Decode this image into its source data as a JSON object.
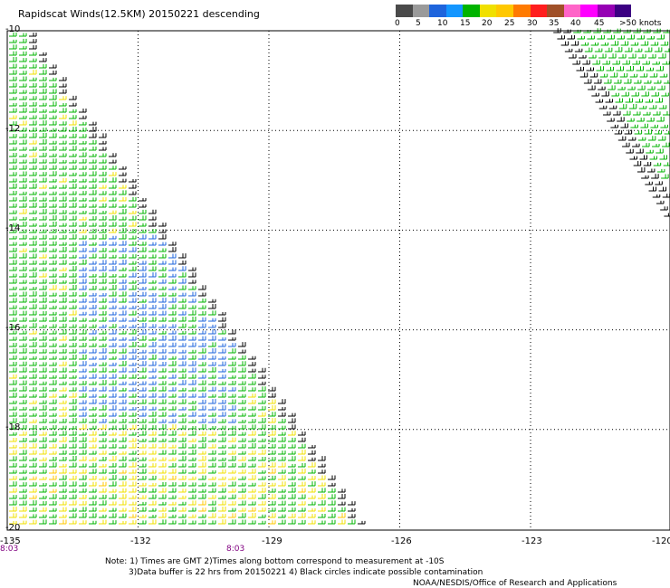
{
  "title": "Rapidscat Winds(12.5KM) 20150221 descending",
  "scale": {
    "colors": [
      "#4a4a4a",
      "#9a9a9a",
      "#1e64dc",
      "#1496ff",
      "#00b400",
      "#f0e000",
      "#ffc800",
      "#ff7a00",
      "#ff1e1e",
      "#a05028",
      "#ff64c8",
      "#ff00ff",
      "#9600b4",
      "#3c0082"
    ],
    "labels": [
      "0",
      "5",
      "10",
      "15",
      "20",
      "25",
      "30",
      "35",
      "40",
      "45",
      ">50 knots"
    ]
  },
  "lat_labels": [
    "-10",
    "-12",
    "-14",
    "-16",
    "-18",
    "-20"
  ],
  "lon_labels": [
    "-135",
    "-132",
    "-129",
    "-126",
    "-123",
    "-120"
  ],
  "time_labels": [
    "8:03",
    "8:03"
  ],
  "notes": {
    "line1": "Note: 1) Times are GMT 2)Times along bottom correspond to measurement at -10S",
    "line2": "3)Data buffer is 22 hrs from 20150221 4) Black circles indicate possible contamination",
    "line3": "NOAA/NESDIS/Office of Research and Applications"
  },
  "swaths": [
    {
      "name": "west-swath",
      "lat_range": [
        -10,
        -20
      ],
      "lon_range": [
        -135,
        -127.5
      ]
    },
    {
      "name": "east-swath",
      "lat_range": [
        -10,
        -14
      ],
      "lon_range": [
        -123.5,
        -120
      ]
    }
  ]
}
